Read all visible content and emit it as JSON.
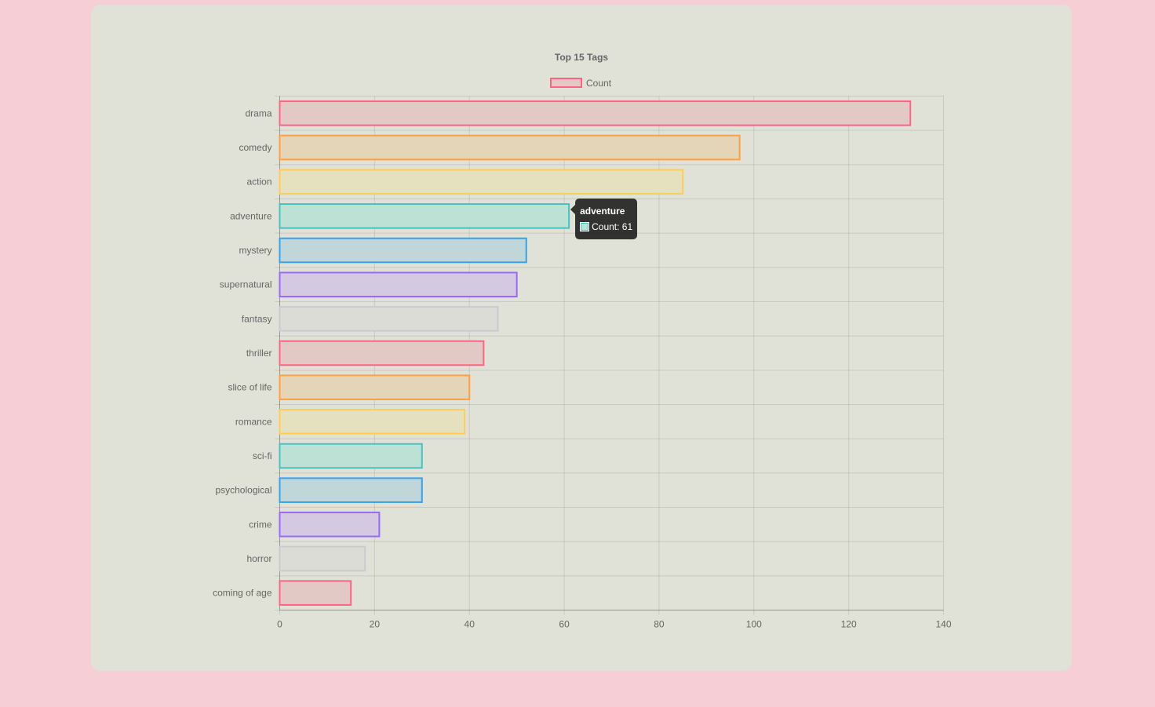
{
  "chart_data": {
    "type": "bar",
    "orientation": "horizontal",
    "title": "Top 15 Tags",
    "legend": {
      "position": "top",
      "label": "Count"
    },
    "categories": [
      "drama",
      "comedy",
      "action",
      "adventure",
      "mystery",
      "supernatural",
      "fantasy",
      "thriller",
      "slice of life",
      "romance",
      "sci-fi",
      "psychological",
      "crime",
      "horror",
      "coming of age"
    ],
    "series": [
      {
        "name": "Count",
        "values": [
          133,
          97,
          85,
          61,
          52,
          50,
          46,
          43,
          40,
          39,
          30,
          30,
          21,
          18,
          15
        ]
      }
    ],
    "xlim": [
      0,
      140
    ],
    "xticks": [
      0,
      20,
      40,
      60,
      80,
      100,
      120,
      140
    ],
    "grid": true,
    "colors": {
      "border": [
        "#ff6384",
        "#ff9f40",
        "#ffcd56",
        "#4bc0c0",
        "#36a2eb",
        "#9966ff",
        "#c9cbcf"
      ],
      "fill": [
        "#e3c9c6",
        "#e4d5b9",
        "#e5e0bd",
        "#bee1d6",
        "#c1d6d9",
        "#d3c9e1",
        "#dcdcd7"
      ]
    },
    "tooltip": {
      "category": "adventure",
      "text": "Count: 61",
      "swatch_color": "#4bc0c0"
    }
  }
}
